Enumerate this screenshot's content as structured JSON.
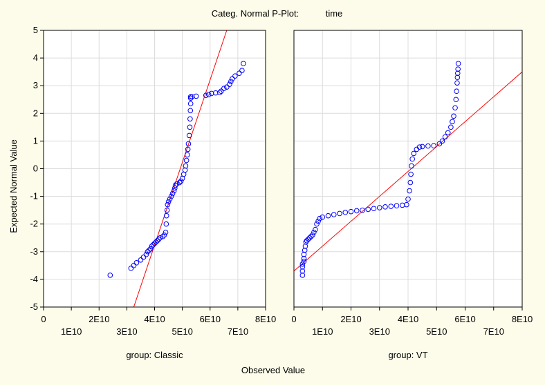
{
  "title_left": "Categ. Normal P-Plot:",
  "title_right": "time",
  "ylabel": "Expected Normal Value",
  "xlabel": "Observed Value",
  "colors": {
    "background": "#fdfbe9",
    "plot_bg": "#ffffff",
    "grid": "#dcdcdc",
    "points": "#0000ff",
    "fit_line": "#ff0000"
  },
  "chart_data": [
    {
      "type": "scatter",
      "panel_label": "group: Classic",
      "xlim": [
        0,
        80000000000.0
      ],
      "ylim": [
        -5,
        5
      ],
      "x_ticks_upper": [
        "0",
        "2E10",
        "4E10",
        "6E10",
        "8E10"
      ],
      "x_ticks_lower": [
        "1E10",
        "3E10",
        "5E10",
        "7E10"
      ],
      "y_ticks": [
        "5",
        "4",
        "3",
        "2",
        "1",
        "0",
        "-1",
        "-2",
        "-3",
        "-4",
        "-5"
      ],
      "fit_line": [
        [
          32500000000.0,
          -5
        ],
        [
          66000000000.0,
          5
        ]
      ],
      "points": [
        [
          24000000000.0,
          -3.85
        ],
        [
          31500000000.0,
          -3.6
        ],
        [
          32500000000.0,
          -3.5
        ],
        [
          33500000000.0,
          -3.4
        ],
        [
          35000000000.0,
          -3.3
        ],
        [
          36000000000.0,
          -3.2
        ],
        [
          37000000000.0,
          -3.1
        ],
        [
          37500000000.0,
          -3.0
        ],
        [
          38000000000.0,
          -2.95
        ],
        [
          38500000000.0,
          -2.9
        ],
        [
          39000000000.0,
          -2.8
        ],
        [
          39500000000.0,
          -2.75
        ],
        [
          40000000000.0,
          -2.7
        ],
        [
          40500000000.0,
          -2.65
        ],
        [
          41000000000.0,
          -2.6
        ],
        [
          41500000000.0,
          -2.55
        ],
        [
          42000000000.0,
          -2.5
        ],
        [
          43000000000.0,
          -2.45
        ],
        [
          43500000000.0,
          -2.4
        ],
        [
          44000000000.0,
          -2.3
        ],
        [
          44200000000.0,
          -2.0
        ],
        [
          44300000000.0,
          -1.7
        ],
        [
          44500000000.0,
          -1.5
        ],
        [
          44700000000.0,
          -1.3
        ],
        [
          45000000000.0,
          -1.2
        ],
        [
          45500000000.0,
          -1.1
        ],
        [
          46000000000.0,
          -1.0
        ],
        [
          46500000000.0,
          -0.9
        ],
        [
          47000000000.0,
          -0.8
        ],
        [
          47300000000.0,
          -0.7
        ],
        [
          47500000000.0,
          -0.6
        ],
        [
          48000000000.0,
          -0.55
        ],
        [
          49000000000.0,
          -0.5
        ],
        [
          49500000000.0,
          -0.45
        ],
        [
          50000000000.0,
          -0.35
        ],
        [
          50500000000.0,
          -0.2
        ],
        [
          51000000000.0,
          -0.05
        ],
        [
          51200000000.0,
          0.1
        ],
        [
          51500000000.0,
          0.3
        ],
        [
          51800000000.0,
          0.5
        ],
        [
          52000000000.0,
          0.7
        ],
        [
          52200000000.0,
          0.9
        ],
        [
          52500000000.0,
          1.2
        ],
        [
          52700000000.0,
          1.5
        ],
        [
          52800000000.0,
          1.8
        ],
        [
          52900000000.0,
          2.1
        ],
        [
          53000000000.0,
          2.35
        ],
        [
          53000000000.0,
          2.55
        ],
        [
          53000000000.0,
          2.6
        ],
        [
          53500000000.0,
          2.6
        ],
        [
          55000000000.0,
          2.62
        ],
        [
          58500000000.0,
          2.65
        ],
        [
          59500000000.0,
          2.68
        ],
        [
          60500000000.0,
          2.72
        ],
        [
          62000000000.0,
          2.74
        ],
        [
          63500000000.0,
          2.75
        ],
        [
          64000000000.0,
          2.8
        ],
        [
          65000000000.0,
          2.9
        ],
        [
          66000000000.0,
          2.95
        ],
        [
          67000000000.0,
          3.05
        ],
        [
          67500000000.0,
          3.15
        ],
        [
          68000000000.0,
          3.25
        ],
        [
          69000000000.0,
          3.35
        ],
        [
          70500000000.0,
          3.45
        ],
        [
          71500000000.0,
          3.55
        ],
        [
          72000000000.0,
          3.8
        ]
      ]
    },
    {
      "type": "scatter",
      "panel_label": "group: VT",
      "xlim": [
        0,
        80000000000.0
      ],
      "ylim": [
        -5,
        5
      ],
      "x_ticks_upper": [
        "0",
        "2E10",
        "4E10",
        "6E10",
        "8E10"
      ],
      "x_ticks_lower": [
        "1E10",
        "3E10",
        "5E10",
        "7E10"
      ],
      "fit_line": [
        [
          0,
          -3.7
        ],
        [
          80000000000.0,
          3.5
        ]
      ],
      "points": [
        [
          3000000000.0,
          -3.85
        ],
        [
          3000000000.0,
          -3.7
        ],
        [
          3000000000.0,
          -3.55
        ],
        [
          3000000000.0,
          -3.45
        ],
        [
          3500000000.0,
          -3.35
        ],
        [
          3500000000.0,
          -3.25
        ],
        [
          3500000000.0,
          -3.1
        ],
        [
          3800000000.0,
          -2.95
        ],
        [
          4000000000.0,
          -2.8
        ],
        [
          4200000000.0,
          -2.65
        ],
        [
          4500000000.0,
          -2.6
        ],
        [
          5000000000.0,
          -2.55
        ],
        [
          5500000000.0,
          -2.5
        ],
        [
          6000000000.0,
          -2.45
        ],
        [
          6500000000.0,
          -2.4
        ],
        [
          7000000000.0,
          -2.3
        ],
        [
          7500000000.0,
          -2.2
        ],
        [
          8000000000.0,
          -2.0
        ],
        [
          8500000000.0,
          -1.9
        ],
        [
          9000000000.0,
          -1.8
        ],
        [
          10000000000.0,
          -1.75
        ],
        [
          12000000000.0,
          -1.7
        ],
        [
          14000000000.0,
          -1.66
        ],
        [
          16000000000.0,
          -1.62
        ],
        [
          18000000000.0,
          -1.58
        ],
        [
          20000000000.0,
          -1.55
        ],
        [
          22000000000.0,
          -1.52
        ],
        [
          24000000000.0,
          -1.5
        ],
        [
          26000000000.0,
          -1.47
        ],
        [
          28000000000.0,
          -1.44
        ],
        [
          30000000000.0,
          -1.41
        ],
        [
          32000000000.0,
          -1.38
        ],
        [
          34000000000.0,
          -1.36
        ],
        [
          36000000000.0,
          -1.34
        ],
        [
          38000000000.0,
          -1.32
        ],
        [
          39500000000.0,
          -1.3
        ],
        [
          40000000000.0,
          -1.1
        ],
        [
          40500000000.0,
          -0.8
        ],
        [
          40800000000.0,
          -0.5
        ],
        [
          41000000000.0,
          -0.2
        ],
        [
          41200000000.0,
          0.1
        ],
        [
          41500000000.0,
          0.35
        ],
        [
          42000000000.0,
          0.55
        ],
        [
          43000000000.0,
          0.7
        ],
        [
          44000000000.0,
          0.78
        ],
        [
          45000000000.0,
          0.8
        ],
        [
          47000000000.0,
          0.82
        ],
        [
          49000000000.0,
          0.83
        ],
        [
          51000000000.0,
          0.9
        ],
        [
          52000000000.0,
          1.0
        ],
        [
          53000000000.0,
          1.15
        ],
        [
          54000000000.0,
          1.3
        ],
        [
          55000000000.0,
          1.5
        ],
        [
          55500000000.0,
          1.7
        ],
        [
          56000000000.0,
          1.9
        ],
        [
          56500000000.0,
          2.2
        ],
        [
          56800000000.0,
          2.5
        ],
        [
          57000000000.0,
          2.8
        ],
        [
          57200000000.0,
          3.1
        ],
        [
          57300000000.0,
          3.3
        ],
        [
          57400000000.0,
          3.45
        ],
        [
          57500000000.0,
          3.6
        ],
        [
          57600000000.0,
          3.8
        ]
      ]
    }
  ]
}
